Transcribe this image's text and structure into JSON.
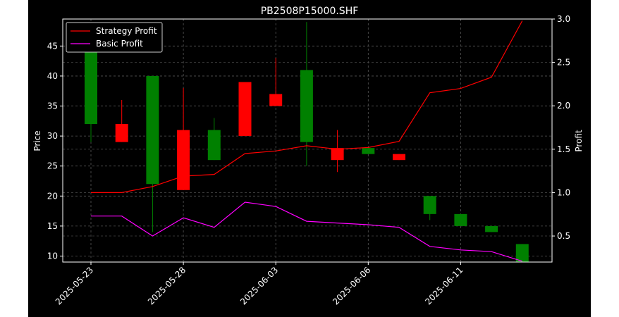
{
  "chart_data": {
    "type": "candlestick",
    "title": "PB2508P15000.SHF",
    "ylabel": "Price",
    "y2label": "Profit",
    "ylim": [
      9,
      49.5
    ],
    "y2lim": [
      0.2,
      3.0
    ],
    "grid": true,
    "legend_position": "top-left",
    "x_tick_labels": [
      "2025-05-23",
      "2025-05-28",
      "2025-06-03",
      "2025-06-06",
      "2025-06-11"
    ],
    "x_tick_index": [
      0,
      3,
      6,
      9,
      12
    ],
    "up_color": "#008000",
    "down_color": "#ff0000",
    "candles": [
      {
        "open": 32,
        "high": 44,
        "low": 29,
        "close": 44
      },
      {
        "open": 32,
        "high": 36,
        "low": 29,
        "close": 29
      },
      {
        "open": 22,
        "high": 40,
        "low": 14,
        "close": 40
      },
      {
        "open": 31,
        "high": 38,
        "low": 21,
        "close": 21
      },
      {
        "open": 26,
        "high": 33,
        "low": 26,
        "close": 31
      },
      {
        "open": 39,
        "high": 39,
        "low": 30,
        "close": 30
      },
      {
        "open": 37,
        "high": 43,
        "low": 35,
        "close": 35
      },
      {
        "open": 29,
        "high": 49,
        "low": 25,
        "close": 41
      },
      {
        "open": 28,
        "high": 31,
        "low": 24,
        "close": 26
      },
      {
        "open": 27,
        "high": 28,
        "low": 27,
        "close": 28
      },
      {
        "open": 27,
        "high": 27,
        "low": 26,
        "close": 26
      },
      {
        "open": 17,
        "high": 20,
        "low": 16,
        "close": 20
      },
      {
        "open": 15,
        "high": 17,
        "low": 15,
        "close": 17
      },
      {
        "open": 14,
        "high": 15,
        "low": 14,
        "close": 15
      },
      {
        "open": 9,
        "high": 12,
        "low": 9,
        "close": 12
      }
    ],
    "series": [
      {
        "name": "Strategy Profit",
        "color": "#ff0000",
        "axis": "right",
        "values": [
          1.0,
          1.0,
          1.07,
          1.19,
          1.21,
          1.45,
          1.48,
          1.54,
          1.5,
          1.52,
          1.59,
          2.15,
          2.2,
          2.33,
          2.98
        ]
      },
      {
        "name": "Basic Profit",
        "color": "#ff00ff",
        "axis": "right",
        "values": [
          0.73,
          0.73,
          0.5,
          0.71,
          0.6,
          0.89,
          0.84,
          0.67,
          0.65,
          0.63,
          0.6,
          0.38,
          0.34,
          0.32,
          0.21
        ]
      }
    ],
    "y_ticks": [
      10,
      15,
      20,
      25,
      30,
      35,
      40,
      45
    ],
    "y2_ticks": [
      0.5,
      1.0,
      1.5,
      2.0,
      2.5,
      3.0
    ],
    "y2_tick_labels": [
      "0.5",
      "1.0",
      "1.5",
      "2.0",
      "2.5",
      "3.0"
    ]
  }
}
